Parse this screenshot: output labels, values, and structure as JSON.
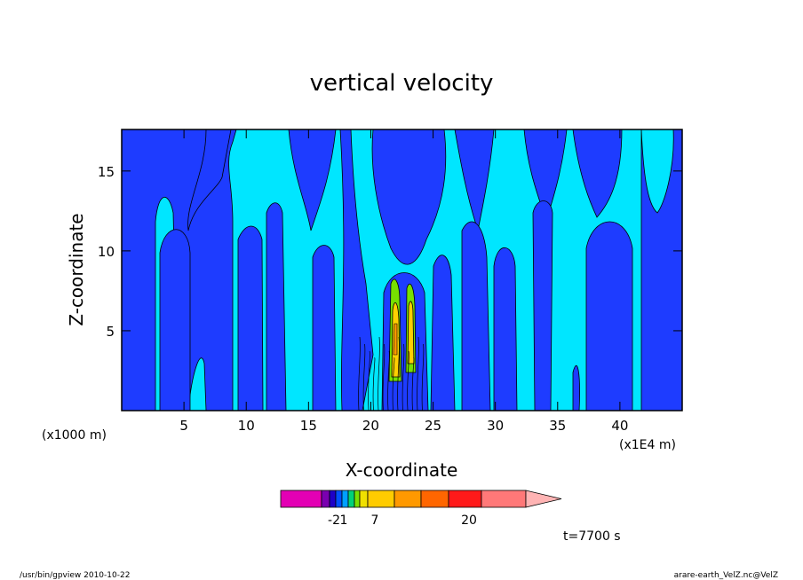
{
  "chart_data": {
    "type": "heatmap",
    "title": "vertical velocity",
    "xlabel": "X-coordinate",
    "ylabel": "Z-coordinate",
    "x_unit_left": "(x1000 m)",
    "x_unit_right": "(x1E4 m)",
    "xlim": [
      0,
      45
    ],
    "ylim": [
      0,
      17.6
    ],
    "x_ticks": [
      5,
      10,
      15,
      20,
      25,
      30,
      35,
      40
    ],
    "y_ticks": [
      5,
      10,
      15
    ],
    "x_tick_labels": [
      "5",
      "10",
      "15",
      "20",
      "25",
      "30",
      "35",
      "40"
    ],
    "y_tick_labels": [
      "5",
      "10",
      "15"
    ],
    "colorbar": {
      "colors": [
        "#e300b4",
        "#7a00b0",
        "#1e00c8",
        "#0050ff",
        "#00a0ff",
        "#00d278",
        "#78e000",
        "#f0e000",
        "#ffcc00",
        "#ff9900",
        "#ff6600",
        "#ff1a1a",
        "#ff7878",
        "#ffb4b4"
      ],
      "tick_labels": [
        "-2",
        "1",
        "7",
        "20"
      ]
    },
    "field_colors": {
      "negative": "#1e3cff",
      "positive": "#00e6ff",
      "updraft_weak": "#78e000",
      "updraft_mid": "#ffd000",
      "updraft_strong": "#ff9900"
    },
    "time_label": "t=7700 s"
  },
  "footer": {
    "left": "/usr/bin/gpview   2010-10-22",
    "right": "arare-earth_VelZ.nc@VelZ"
  }
}
